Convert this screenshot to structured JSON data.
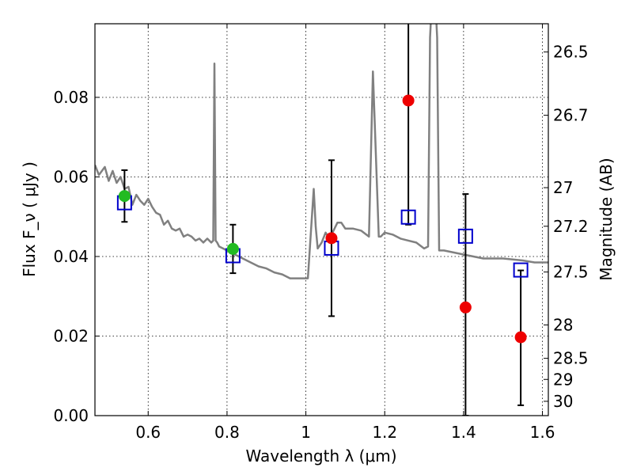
{
  "chart_data": {
    "type": "scatter",
    "title": "",
    "xlabel": "Wavelength  λ (μm)",
    "ylabel": "Flux  F_ν  ( μJy )",
    "ylabel_right": "Magnitude (AB)",
    "xlim": [
      0.465,
      1.615
    ],
    "ylim": [
      0.0,
      0.0985
    ],
    "grid": true,
    "x_ticks": [
      0.6,
      0.8,
      1.0,
      1.2,
      1.4,
      1.6
    ],
    "x_tick_labels": [
      "0.6",
      "0.8",
      "1",
      "1.2",
      "1.4",
      "1.6"
    ],
    "y_ticks": [
      0.0,
      0.02,
      0.04,
      0.06,
      0.08
    ],
    "y_tick_labels": [
      "0.00",
      "0.02",
      "0.04",
      "0.06",
      "0.08"
    ],
    "mag_ticks": [
      {
        "label": "26.5",
        "flux": 0.0914
      },
      {
        "label": "26.7",
        "flux": 0.0755
      },
      {
        "label": "27",
        "flux": 0.0573
      },
      {
        "label": "27.2",
        "flux": 0.0476
      },
      {
        "label": "27.5",
        "flux": 0.0361
      },
      {
        "label": "28",
        "flux": 0.0228
      },
      {
        "label": "28.5",
        "flux": 0.0144
      },
      {
        "label": "29",
        "flux": 0.0091
      },
      {
        "label": "30",
        "flux": 0.0036
      }
    ],
    "colors": {
      "sed": "#808080",
      "model_marker": "#0000cc",
      "green": "#22bb22",
      "red": "#ee0000",
      "errorbar": "#000000"
    },
    "sed_curve": {
      "x": [
        0.465,
        0.475,
        0.49,
        0.5,
        0.51,
        0.52,
        0.53,
        0.54,
        0.55,
        0.56,
        0.57,
        0.58,
        0.59,
        0.6,
        0.61,
        0.62,
        0.63,
        0.64,
        0.65,
        0.66,
        0.67,
        0.68,
        0.69,
        0.7,
        0.71,
        0.72,
        0.73,
        0.74,
        0.75,
        0.76,
        0.765,
        0.768,
        0.771,
        0.775,
        0.78,
        0.8,
        0.82,
        0.84,
        0.86,
        0.88,
        0.9,
        0.92,
        0.94,
        0.96,
        0.98,
        0.99,
        1.005,
        1.02,
        1.025,
        1.03,
        1.04,
        1.05,
        1.06,
        1.08,
        1.09,
        1.1,
        1.12,
        1.14,
        1.16,
        1.17,
        1.185,
        1.19,
        1.2,
        1.22,
        1.24,
        1.26,
        1.28,
        1.3,
        1.31,
        1.315,
        1.32,
        1.328,
        1.333,
        1.338,
        1.345,
        1.35,
        1.4,
        1.45,
        1.5,
        1.55,
        1.58,
        1.6,
        1.615
      ],
      "y": [
        0.063,
        0.0605,
        0.0625,
        0.059,
        0.0615,
        0.0585,
        0.06,
        0.057,
        0.0575,
        0.053,
        0.0555,
        0.054,
        0.053,
        0.0545,
        0.0525,
        0.051,
        0.0505,
        0.048,
        0.049,
        0.047,
        0.0465,
        0.047,
        0.045,
        0.0455,
        0.045,
        0.044,
        0.0445,
        0.0435,
        0.0445,
        0.0435,
        0.044,
        0.0885,
        0.044,
        0.0435,
        0.0425,
        0.0415,
        0.0405,
        0.0395,
        0.0385,
        0.0375,
        0.037,
        0.036,
        0.0355,
        0.0345,
        0.0345,
        0.0345,
        0.0345,
        0.057,
        0.0475,
        0.042,
        0.0435,
        0.046,
        0.0445,
        0.0485,
        0.0485,
        0.047,
        0.047,
        0.0465,
        0.045,
        0.0865,
        0.045,
        0.045,
        0.046,
        0.0455,
        0.0445,
        0.044,
        0.0435,
        0.042,
        0.0425,
        0.095,
        0.105,
        0.105,
        0.095,
        0.0415,
        0.0415,
        0.0415,
        0.0405,
        0.0395,
        0.0395,
        0.039,
        0.0385,
        0.0385,
        0.0385
      ]
    },
    "model_points": [
      {
        "x": 0.54,
        "y": 0.0535
      },
      {
        "x": 0.815,
        "y": 0.0402
      },
      {
        "x": 1.065,
        "y": 0.0421
      },
      {
        "x": 1.26,
        "y": 0.0499
      },
      {
        "x": 1.405,
        "y": 0.0451
      },
      {
        "x": 1.545,
        "y": 0.0366
      }
    ],
    "observed_points": [
      {
        "x": 0.54,
        "y": 0.0552,
        "err_low": 0.0487,
        "err_high": 0.0617,
        "color": "green"
      },
      {
        "x": 0.815,
        "y": 0.0419,
        "err_low": 0.0358,
        "err_high": 0.048,
        "color": "green"
      },
      {
        "x": 1.065,
        "y": 0.0446,
        "err_low": 0.025,
        "err_high": 0.0642,
        "color": "red"
      },
      {
        "x": 1.26,
        "y": 0.0792,
        "err_low": 0.048,
        "err_high": 0.1,
        "color": "red"
      },
      {
        "x": 1.405,
        "y": 0.0272,
        "err_low": 0.0,
        "err_high": 0.0557,
        "color": "red"
      },
      {
        "x": 1.545,
        "y": 0.0197,
        "err_low": 0.0026,
        "err_high": 0.0365,
        "color": "red"
      }
    ]
  }
}
